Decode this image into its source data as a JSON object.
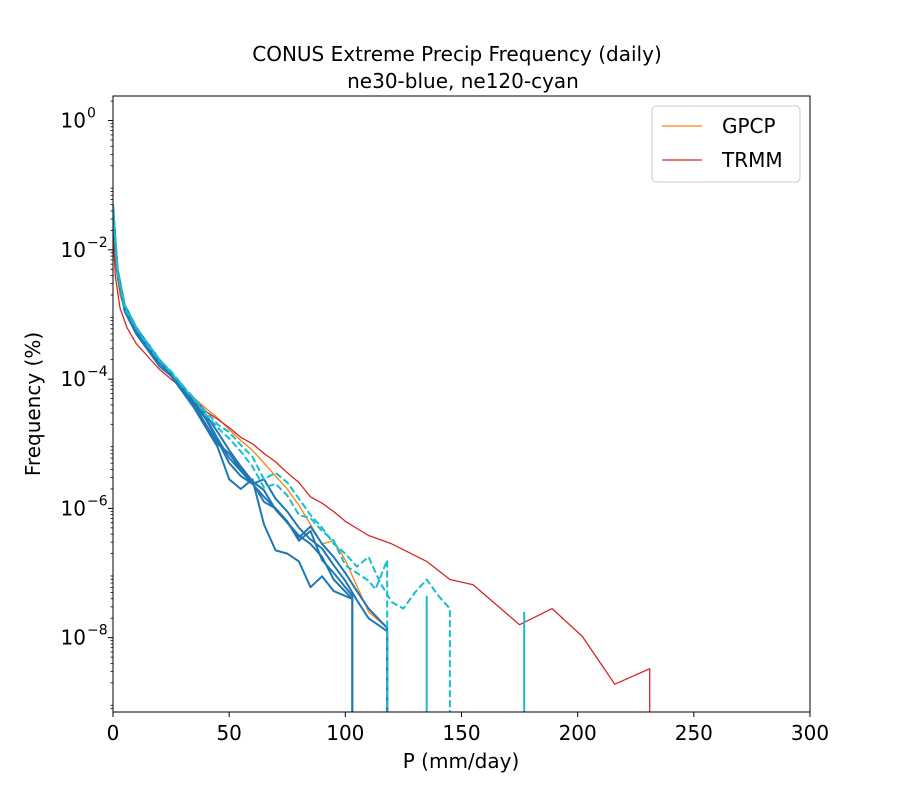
{
  "chart_data": {
    "type": "line",
    "title": "CONUS Extreme Precip Frequency (daily)",
    "subtitle": "ne30-blue, ne120-cyan",
    "xlabel": "P (mm/day)",
    "ylabel": "Frequency (%)",
    "xlim": [
      0,
      300
    ],
    "ylim_exp": [
      -9.15,
      0.38
    ],
    "yscale": "log",
    "xticks": [
      "0",
      "50",
      "100",
      "150",
      "200",
      "250",
      "300"
    ],
    "yticks": [
      {
        "base": "10",
        "exp": "0",
        "v": 0
      },
      {
        "base": "10",
        "exp": "−2",
        "v": -2
      },
      {
        "base": "10",
        "exp": "−4",
        "v": -4
      },
      {
        "base": "10",
        "exp": "−6",
        "v": -6
      },
      {
        "base": "10",
        "exp": "−8",
        "v": -8
      }
    ],
    "legend": {
      "position": "top-right",
      "entries": [
        {
          "label": "GPCP",
          "color": "#ff7f0e"
        },
        {
          "label": "TRMM",
          "color": "#d62728"
        }
      ]
    },
    "colors": {
      "ne30": "#1f77b4",
      "ne120": "#17becf",
      "gpcp": "#ff7f0e",
      "trmm": "#d62728"
    },
    "series": [
      {
        "name": "GPCP",
        "color": "#ff7f0e",
        "dash": false,
        "x": [
          0,
          1,
          3,
          6,
          10,
          15,
          20,
          25,
          30,
          35,
          40,
          45,
          50,
          55,
          60,
          65,
          70,
          75,
          80,
          85,
          90,
          95,
          100,
          105,
          110,
          118,
          118
        ],
        "y": [
          -1.6,
          -2.2,
          -2.7,
          -3.0,
          -3.3,
          -3.55,
          -3.75,
          -3.95,
          -4.12,
          -4.3,
          -4.45,
          -4.6,
          -4.78,
          -4.95,
          -5.1,
          -5.3,
          -5.5,
          -5.7,
          -5.95,
          -6.25,
          -6.55,
          -6.5,
          -6.8,
          -7.2,
          -7.6,
          -7.85,
          -9.15
        ]
      },
      {
        "name": "TRMM",
        "color": "#d62728",
        "dash": false,
        "x": [
          0,
          1,
          3,
          6,
          10,
          15,
          20,
          25,
          30,
          35,
          40,
          45,
          50,
          55,
          60,
          65,
          70,
          75,
          80,
          85,
          90,
          95,
          100,
          110,
          120,
          135,
          145,
          155,
          175,
          189,
          202,
          216,
          231,
          231
        ],
        "y": [
          -1.7,
          -2.4,
          -2.9,
          -3.2,
          -3.45,
          -3.65,
          -3.85,
          -4.0,
          -4.15,
          -4.3,
          -4.5,
          -4.62,
          -4.75,
          -4.9,
          -5.0,
          -5.15,
          -5.28,
          -5.45,
          -5.6,
          -5.82,
          -5.92,
          -6.05,
          -6.2,
          -6.42,
          -6.55,
          -6.82,
          -7.1,
          -7.18,
          -7.8,
          -7.55,
          -7.98,
          -8.72,
          -8.48,
          -9.15
        ]
      },
      {
        "name": "",
        "color": "#1f77b4",
        "dash": false,
        "x": [
          0,
          2,
          5,
          10,
          15,
          20,
          25,
          30,
          35,
          40,
          45,
          50,
          55,
          60,
          65,
          70,
          75,
          80,
          85,
          90,
          95,
          103,
          103
        ],
        "y": [
          -1.3,
          -2.35,
          -2.9,
          -3.25,
          -3.5,
          -3.75,
          -3.92,
          -4.1,
          -4.35,
          -4.62,
          -4.95,
          -5.3,
          -5.5,
          -5.62,
          -5.82,
          -6.0,
          -6.22,
          -6.42,
          -6.55,
          -6.75,
          -7.1,
          -7.4,
          -9.15
        ]
      },
      {
        "name": "",
        "color": "#1f77b4",
        "dash": false,
        "x": [
          0,
          2,
          5,
          10,
          15,
          20,
          25,
          30,
          35,
          40,
          45,
          50,
          55,
          60,
          65,
          70,
          75,
          80,
          85,
          90,
          95,
          103,
          103
        ],
        "y": [
          -1.4,
          -2.3,
          -2.85,
          -3.2,
          -3.45,
          -3.7,
          -3.9,
          -4.15,
          -4.4,
          -4.7,
          -5.0,
          -5.15,
          -5.4,
          -5.6,
          -5.9,
          -6.0,
          -6.2,
          -6.5,
          -6.35,
          -6.8,
          -7.0,
          -7.35,
          -9.15
        ]
      },
      {
        "name": "",
        "color": "#1f77b4",
        "dash": false,
        "x": [
          0,
          2,
          5,
          10,
          15,
          20,
          25,
          30,
          35,
          40,
          45,
          50,
          55,
          60,
          65,
          70,
          75,
          80,
          85,
          90,
          95,
          103
        ],
        "y": [
          -1.5,
          -2.4,
          -2.95,
          -3.3,
          -3.55,
          -3.8,
          -3.95,
          -4.2,
          -4.45,
          -4.75,
          -5.05,
          -5.55,
          -5.7,
          -5.55,
          -6.25,
          -6.65,
          -6.7,
          -6.82,
          -7.22,
          -7.05,
          -7.28,
          -7.4
        ]
      },
      {
        "name": "",
        "color": "#1f77b4",
        "dash": false,
        "x": [
          0,
          2,
          5,
          10,
          15,
          20,
          25,
          30,
          35,
          40,
          45,
          50,
          55,
          60,
          65,
          70,
          75,
          80,
          85,
          90,
          95,
          100,
          105,
          110,
          118,
          118
        ],
        "y": [
          -1.35,
          -2.3,
          -2.85,
          -3.2,
          -3.5,
          -3.75,
          -3.92,
          -4.18,
          -4.42,
          -4.6,
          -4.92,
          -5.22,
          -5.42,
          -5.62,
          -5.55,
          -5.85,
          -6.05,
          -6.3,
          -6.48,
          -6.62,
          -6.88,
          -7.12,
          -7.42,
          -7.7,
          -7.9,
          -9.15
        ]
      },
      {
        "name": "",
        "color": "#1f77b4",
        "dash": false,
        "x": [
          0,
          2,
          5,
          10,
          15,
          20,
          25,
          30,
          35,
          40,
          45,
          50,
          55,
          60,
          65,
          70,
          75,
          80,
          85,
          90,
          95,
          100,
          105,
          110,
          118,
          118
        ],
        "y": [
          -1.45,
          -2.35,
          -2.9,
          -3.25,
          -3.5,
          -3.72,
          -3.9,
          -4.12,
          -4.35,
          -4.55,
          -4.82,
          -5.1,
          -5.35,
          -5.58,
          -5.72,
          -6.02,
          -6.22,
          -6.45,
          -6.28,
          -6.55,
          -6.75,
          -7.0,
          -7.28,
          -7.55,
          -7.85,
          -9.15
        ]
      },
      {
        "name": "",
        "color": "#17becf",
        "dash": true,
        "x": [
          0,
          2,
          5,
          10,
          15,
          20,
          25,
          30,
          35,
          40,
          45,
          50,
          55,
          60,
          65,
          70,
          75,
          80,
          85,
          90,
          95,
          100,
          105,
          110,
          115,
          120,
          125,
          130,
          135,
          140,
          145,
          145
        ],
        "y": [
          -1.3,
          -2.3,
          -2.85,
          -3.2,
          -3.45,
          -3.7,
          -3.88,
          -4.1,
          -4.3,
          -4.5,
          -4.7,
          -4.82,
          -5.02,
          -5.2,
          -5.55,
          -5.45,
          -5.6,
          -5.85,
          -6.1,
          -6.3,
          -6.55,
          -6.7,
          -6.9,
          -6.75,
          -7.15,
          -7.45,
          -7.55,
          -7.3,
          -7.1,
          -7.35,
          -7.55,
          -9.15
        ]
      },
      {
        "name": "",
        "color": "#17becf",
        "dash": true,
        "x": [
          0,
          2,
          5,
          10,
          15,
          20,
          25,
          30,
          35,
          40,
          45,
          50,
          55,
          60,
          65,
          70,
          75,
          80,
          85,
          90,
          95,
          100,
          105,
          110,
          113,
          118,
          118
        ],
        "y": [
          -1.4,
          -2.35,
          -2.9,
          -3.22,
          -3.48,
          -3.72,
          -3.9,
          -4.12,
          -4.32,
          -4.55,
          -4.75,
          -4.92,
          -5.12,
          -5.35,
          -5.68,
          -5.62,
          -5.8,
          -6.1,
          -6.15,
          -6.35,
          -6.5,
          -6.88,
          -7.0,
          -7.12,
          -7.25,
          -6.8,
          -9.15
        ]
      },
      {
        "name": "",
        "color": "#17becf",
        "dash": false,
        "x": [
          135,
          135
        ],
        "y": [
          -7.35,
          -9.15
        ]
      },
      {
        "name": "",
        "color": "#17becf",
        "dash": true,
        "x": [
          177,
          177,
          177
        ],
        "y": [
          -7.65,
          -9.15,
          -7.6
        ]
      }
    ]
  }
}
